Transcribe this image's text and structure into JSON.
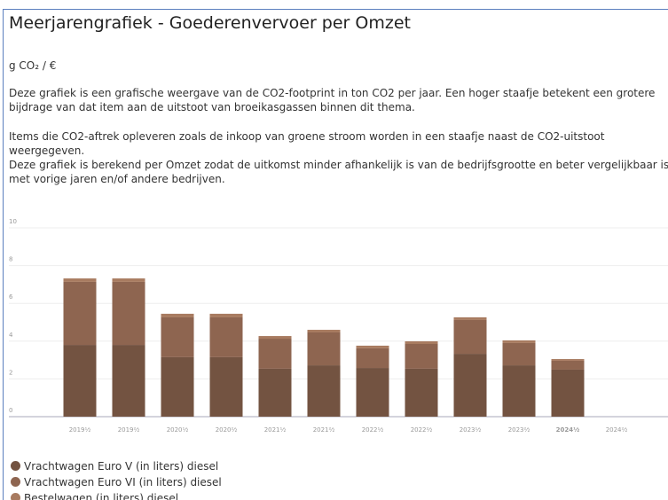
{
  "title": "Meerjarengrafiek - Goederenvervoer per Omzet",
  "unit": "g CO₂ / €",
  "paragraphs": [
    "Deze grafiek is een grafische weergave van de CO2-footprint in ton CO2 per jaar. Een hoger staafje betekent een grotere bijdrage van dat item aan de uitstoot van broeikasgassen binnen dit thema.",
    "Items die CO2-aftrek opleveren zoals de inkoop van groene stroom worden in een staafje naast de CO2-uitstoot weergegeven.",
    "Deze grafiek is berekend per Omzet zodat de uitkomst minder afhankelijk is van de bedrijfsgrootte en beter vergelijkbaar is met vorige jaren en/of andere bedrijven."
  ],
  "chart_data": {
    "type": "stacked_bar",
    "categories": [
      "2019¹⁄₂",
      "2019²⁄₂",
      "2020¹⁄₂",
      "2020²⁄₂",
      "2021¹⁄₂",
      "2021²⁄₂",
      "2022¹⁄₂",
      "2022²⁄₂",
      "2023¹⁄₂",
      "2023²⁄₂",
      "2024¹⁄₂",
      "2024²⁄₂"
    ],
    "series": [
      {
        "name": "Vrachtwagen Euro V (in liters) diesel",
        "color": "#735341",
        "values": [
          3.8,
          3.8,
          3.15,
          3.15,
          2.54,
          2.72,
          2.58,
          2.54,
          3.33,
          2.72,
          2.49,
          null
        ]
      },
      {
        "name": "Vrachtwagen Euro VI (in liters) diesel",
        "color": "#8e6550",
        "values": [
          3.34,
          3.34,
          2.11,
          2.11,
          1.59,
          1.74,
          1.04,
          1.31,
          1.79,
          1.18,
          0.47,
          null
        ]
      },
      {
        "name": "Bestelwagen (in liters) diesel",
        "color": "#a87b60",
        "values": [
          0.18,
          0.18,
          0.19,
          0.19,
          0.14,
          0.14,
          0.14,
          0.14,
          0.14,
          0.14,
          0.09,
          null
        ]
      }
    ],
    "ylim": [
      0,
      10
    ],
    "yticks": [
      0,
      2,
      4,
      6,
      8,
      10
    ],
    "grid": true
  }
}
